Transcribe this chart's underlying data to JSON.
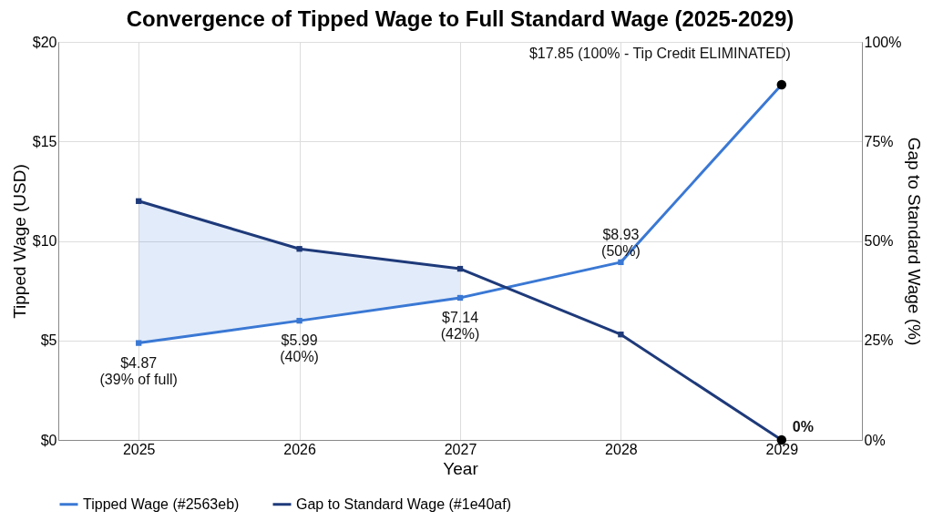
{
  "chart_data": {
    "type": "line",
    "title": "Convergence of Tipped Wage to Full Standard Wage (2025-2029)",
    "xlabel": "Year",
    "ylabel": "Tipped Wage (USD)",
    "y2label": "Gap to Standard Wage (%)",
    "categories": [
      "2025",
      "2026",
      "2027",
      "2028",
      "2029"
    ],
    "series": [
      {
        "name": "Tipped Wage (#2563eb)",
        "color": "#3a78d4",
        "values": [
          4.87,
          5.99,
          7.14,
          8.93,
          17.85
        ],
        "lower": [
          4.87,
          5.99,
          7.14,
          null,
          null
        ],
        "upper": [
          12.05,
          9.6,
          8.55,
          null,
          null
        ]
      },
      {
        "name": "Gap to Standard Wage (#1e40af)",
        "color": "#1e3a7a",
        "values": [
          60,
          48,
          43,
          26.5,
          0
        ],
        "axis": "y2"
      },
      {
        "type": "scatter",
        "color": "#000000",
        "values": [
          null,
          null,
          null,
          null,
          17.85
        ],
        "marker": "circle"
      },
      {
        "type": "scatter",
        "color": "#000000",
        "values": [
          null,
          null,
          null,
          null,
          0
        ],
        "marker": "circle",
        "axis": "y2"
      }
    ],
    "ylim": [
      0,
      20
    ],
    "yticks": [
      {
        "value": 0,
        "label": "$0"
      },
      {
        "value": 5,
        "label": "$5"
      },
      {
        "value": 10,
        "label": "$10"
      },
      {
        "value": 15,
        "label": "$15"
      },
      {
        "value": 20,
        "label": "$20"
      }
    ],
    "y2lim": [
      0,
      100
    ],
    "y2ticks": [
      {
        "value": 0,
        "label": "0%"
      },
      {
        "value": 25,
        "label": "25%"
      },
      {
        "value": 50,
        "label": "50%"
      },
      {
        "value": 75,
        "label": "75%"
      },
      {
        "value": 100,
        "label": "100%"
      }
    ],
    "annotations": [
      {
        "text": "$4.87\n(39% of full)",
        "x": "2025",
        "y": 4.87
      },
      {
        "text": "$5.99\n(40%)",
        "x": "2026",
        "y": 5.99
      },
      {
        "text": "$7.14\n(42%)",
        "x": "2027",
        "y": 7.14
      },
      {
        "text": "$8.93\n(50%)",
        "x": "2028",
        "y": 8.93
      },
      {
        "text": "$17.85 (100% - Tip Credit ELIMINATED)",
        "x": "2029",
        "y": 17.85
      },
      {
        "text": "0%",
        "x": "2029",
        "y": 0
      }
    ],
    "grid": true,
    "legend": "bottom",
    "marker": "square",
    "line_style": "solid"
  }
}
